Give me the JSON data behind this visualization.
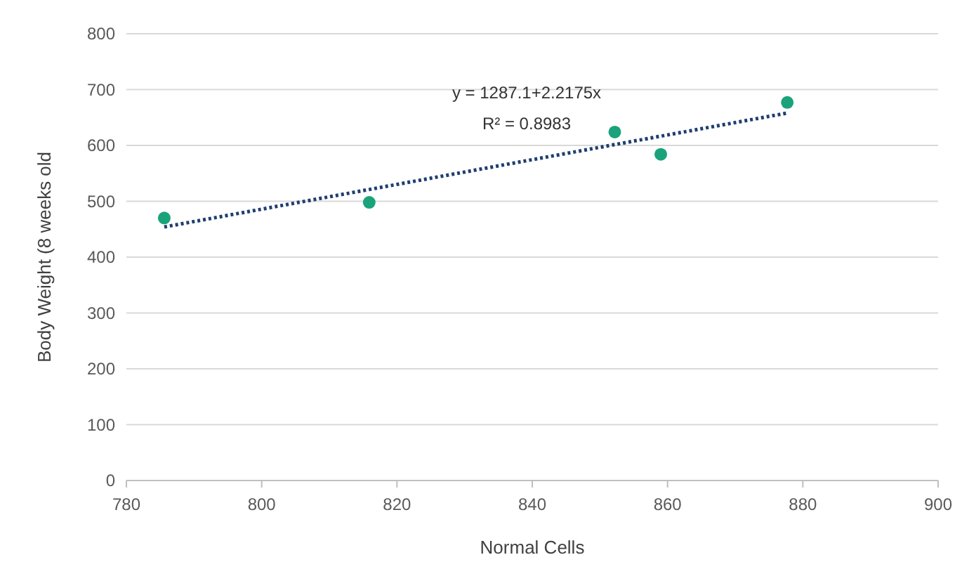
{
  "chart_data": {
    "type": "scatter",
    "xlabel": "Normal Cells",
    "ylabel": "Body Weight (8 weeks old",
    "xlim": [
      780,
      900
    ],
    "xticks": [
      780,
      800,
      820,
      840,
      860,
      880,
      900
    ],
    "ylim": [
      0,
      800
    ],
    "yticks": [
      0,
      100,
      200,
      300,
      400,
      500,
      600,
      700,
      800
    ],
    "grid": "y",
    "annotations": [
      "y = 1287.1+2.2175x",
      "R² = 0.8983"
    ],
    "series": [
      {
        "color": "#1aa37a",
        "marker": "circle",
        "x": [
          785.6,
          815.9,
          852.2,
          859,
          877.7
        ],
        "values": [
          470,
          498,
          624,
          584,
          677
        ]
      },
      {
        "type": "line",
        "color": "#1f3e6e",
        "marker": "none",
        "line_style": "dotted",
        "x": [
          785.6,
          877.7
        ],
        "values": [
          454,
          658
        ]
      }
    ]
  }
}
